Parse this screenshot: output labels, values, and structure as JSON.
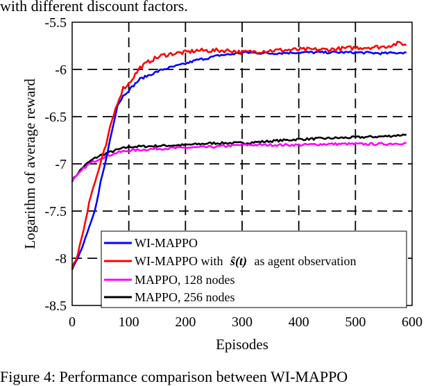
{
  "captions": {
    "top": "with different discount factors.",
    "bottom": "Figure 4: Performance comparison between WI-MAPPO"
  },
  "chart_data": {
    "type": "line",
    "title": "",
    "xlabel": "Episodes",
    "ylabel": "Logarithm of average reward",
    "xlim": [
      0,
      600
    ],
    "ylim": [
      -8.5,
      -5.5
    ],
    "xticks": [
      "0",
      "100",
      "200",
      "300",
      "400",
      "500",
      "600"
    ],
    "yticks": [
      "-5.5",
      "-6",
      "-6.5",
      "-7",
      "-7.5",
      "-8",
      "-8.5"
    ],
    "grid": true,
    "legend_position": "bottom-right",
    "legend": [
      {
        "name": "WI-MAPPO",
        "color": "#0000ff"
      },
      {
        "name_prefix": "WI-MAPPO with",
        "name_math": "ŝ(t)",
        "name_suffix": "as agent observation",
        "color": "#ff0000"
      },
      {
        "name": "MAPPO, 128 nodes",
        "color": "#ff00ff"
      },
      {
        "name": "MAPPO, 256 nodes",
        "color": "#000000"
      }
    ],
    "series": [
      {
        "name": "WI-MAPPO",
        "color": "#0000ff",
        "x": [
          0,
          10,
          20,
          30,
          40,
          50,
          60,
          70,
          80,
          90,
          100,
          120,
          140,
          160,
          180,
          200,
          220,
          240,
          260,
          280,
          300,
          350,
          400,
          450,
          500,
          550,
          590
        ],
        "y": [
          -8.12,
          -8.0,
          -7.85,
          -7.68,
          -7.5,
          -7.2,
          -6.95,
          -6.65,
          -6.38,
          -6.28,
          -6.22,
          -6.1,
          -6.05,
          -6.0,
          -5.97,
          -5.94,
          -5.9,
          -5.88,
          -5.85,
          -5.84,
          -5.82,
          -5.83,
          -5.82,
          -5.82,
          -5.82,
          -5.83,
          -5.82
        ]
      },
      {
        "name": "WI-MAPPO with ŝ(t) as agent observation",
        "color": "#ff0000",
        "x": [
          0,
          10,
          20,
          30,
          40,
          50,
          60,
          70,
          80,
          90,
          100,
          120,
          140,
          160,
          180,
          200,
          220,
          240,
          260,
          280,
          300,
          350,
          400,
          450,
          500,
          550,
          580,
          590
        ],
        "y": [
          -8.12,
          -7.95,
          -7.7,
          -7.4,
          -7.2,
          -7.0,
          -6.8,
          -6.55,
          -6.35,
          -6.2,
          -6.15,
          -5.98,
          -5.9,
          -5.85,
          -5.83,
          -5.82,
          -5.8,
          -5.8,
          -5.8,
          -5.8,
          -5.82,
          -5.8,
          -5.79,
          -5.79,
          -5.77,
          -5.76,
          -5.72,
          -5.74
        ]
      },
      {
        "name": "MAPPO, 128 nodes",
        "color": "#ff00ff",
        "x": [
          0,
          10,
          20,
          30,
          40,
          50,
          60,
          80,
          100,
          150,
          200,
          250,
          300,
          350,
          400,
          450,
          500,
          550,
          590
        ],
        "y": [
          -7.18,
          -7.12,
          -7.05,
          -7.0,
          -6.97,
          -6.94,
          -6.92,
          -6.88,
          -6.86,
          -6.84,
          -6.83,
          -6.82,
          -6.8,
          -6.8,
          -6.8,
          -6.79,
          -6.79,
          -6.79,
          -6.78
        ]
      },
      {
        "name": "MAPPO, 256 nodes",
        "color": "#000000",
        "x": [
          0,
          10,
          20,
          30,
          40,
          50,
          60,
          80,
          100,
          150,
          200,
          250,
          300,
          350,
          400,
          450,
          500,
          550,
          590
        ],
        "y": [
          -7.18,
          -7.1,
          -7.03,
          -6.98,
          -6.94,
          -6.91,
          -6.89,
          -6.85,
          -6.82,
          -6.81,
          -6.8,
          -6.78,
          -6.78,
          -6.76,
          -6.74,
          -6.73,
          -6.72,
          -6.71,
          -6.69
        ]
      }
    ]
  }
}
